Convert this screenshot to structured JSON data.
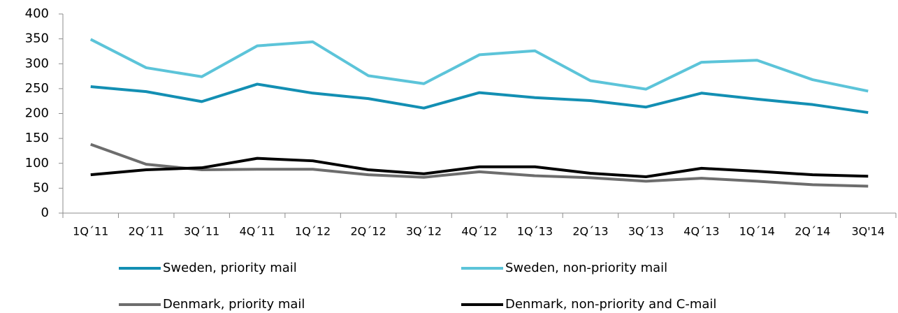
{
  "chart_data": {
    "type": "line",
    "categories": [
      "1Q´11",
      "2Q´11",
      "3Q´11",
      "4Q´11",
      "1Q´12",
      "2Q´12",
      "3Q´12",
      "4Q´12",
      "1Q´13",
      "2Q´13",
      "3Q´13",
      "4Q´13",
      "1Q´14",
      "2Q´14",
      "3Q'14"
    ],
    "series": [
      {
        "name": "Sweden, priority mail",
        "color": "#138fb3",
        "values": [
          254,
          244,
          224,
          259,
          241,
          230,
          211,
          242,
          232,
          226,
          213,
          241,
          229,
          218,
          202
        ]
      },
      {
        "name": "Sweden, non-priority mail",
        "color": "#5cc4d9",
        "values": [
          349,
          292,
          274,
          336,
          344,
          276,
          260,
          318,
          326,
          266,
          249,
          303,
          307,
          268,
          245
        ]
      },
      {
        "name": "Denmark, priority mail",
        "color": "#6d6d6d",
        "values": [
          138,
          98,
          87,
          88,
          88,
          77,
          72,
          83,
          75,
          71,
          64,
          70,
          64,
          57,
          54
        ]
      },
      {
        "name": "Denmark, non-priority and C-mail",
        "color": "#000000",
        "values": [
          77,
          87,
          91,
          110,
          105,
          87,
          79,
          93,
          93,
          80,
          73,
          90,
          84,
          77,
          74
        ]
      }
    ],
    "ylim": [
      0,
      400
    ],
    "yticks": [
      0,
      50,
      100,
      150,
      200,
      250,
      300,
      350,
      400
    ],
    "grid": false,
    "legend": "bottom"
  }
}
